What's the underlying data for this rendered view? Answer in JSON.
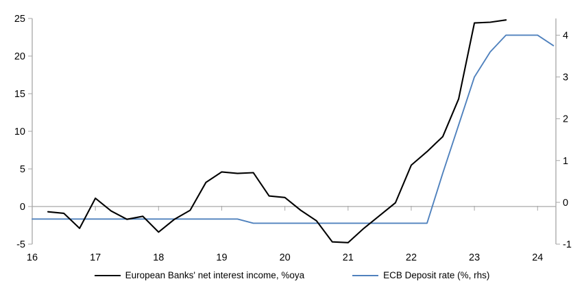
{
  "chart_data": {
    "type": "line",
    "title": "",
    "legend_position": "bottom",
    "grid": false,
    "zero_line": true,
    "x_axis": {
      "range": [
        16,
        24.29
      ],
      "ticks": [
        16,
        17,
        18,
        19,
        20,
        21,
        22,
        23,
        24
      ],
      "tick_labels": [
        "16",
        "17",
        "18",
        "19",
        "20",
        "21",
        "22",
        "23",
        "24"
      ]
    },
    "left_axis": {
      "range": [
        -5,
        25
      ],
      "ticks": [
        25,
        20,
        15,
        10,
        5,
        0,
        -5
      ]
    },
    "right_axis": {
      "range": [
        -1,
        4.4
      ],
      "ticks": [
        4,
        3,
        2,
        1,
        0,
        -1
      ]
    },
    "series": [
      {
        "name": "European Banks' net interest income, %oya",
        "axis": "left",
        "color": "#000000",
        "x": [
          16.25,
          16.5,
          16.75,
          17.0,
          17.25,
          17.5,
          17.75,
          18.0,
          18.25,
          18.5,
          18.75,
          19.0,
          19.25,
          19.5,
          19.75,
          20.0,
          20.25,
          20.5,
          20.75,
          21.0,
          21.25,
          21.5,
          21.75,
          22.0,
          22.25,
          22.5,
          22.75,
          23.0,
          23.25,
          23.5
        ],
        "values": [
          -0.7,
          -0.9,
          -2.9,
          1.1,
          -0.6,
          -1.7,
          -1.3,
          -3.4,
          -1.7,
          -0.5,
          3.2,
          4.6,
          4.4,
          4.5,
          1.4,
          1.2,
          -0.5,
          -1.9,
          -4.7,
          -4.8,
          -2.9,
          -1.2,
          0.5,
          5.5,
          7.3,
          9.3,
          14.3,
          24.4,
          24.5,
          24.8
        ]
      },
      {
        "name": "ECB Deposit rate (%, rhs)",
        "axis": "right",
        "color": "#4f81bd",
        "x": [
          16.0,
          19.25,
          19.5,
          22.25,
          22.5,
          22.75,
          23.0,
          23.25,
          23.5,
          23.75,
          24.0,
          24.25
        ],
        "values": [
          -0.4,
          -0.4,
          -0.5,
          -0.5,
          0.7,
          1.85,
          3.0,
          3.6,
          4.0,
          4.0,
          4.0,
          3.75
        ]
      }
    ]
  },
  "colors": {
    "axis": "#a6a6a6",
    "zero_line": "#a6a6a6",
    "tick_text": "#000000",
    "nii_line": "#000000",
    "ecb_line": "#4f81bd"
  }
}
